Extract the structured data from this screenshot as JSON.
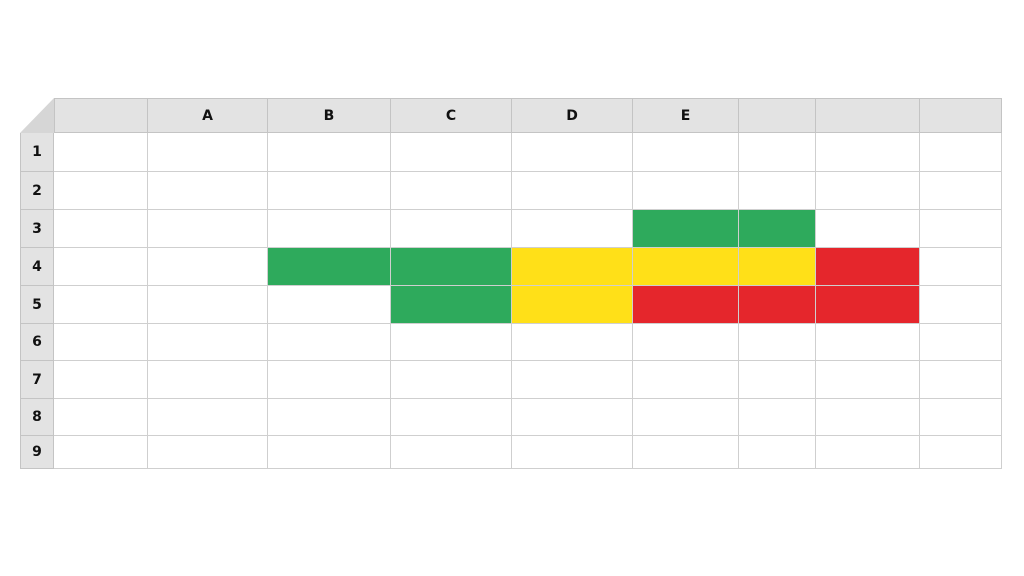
{
  "spreadsheet": {
    "column_headers": [
      "",
      "A",
      "B",
      "C",
      "D",
      "E",
      "",
      "",
      ""
    ],
    "row_headers": [
      "1",
      "2",
      "3",
      "4",
      "5",
      "6",
      "7",
      "8",
      "9"
    ],
    "colors": {
      "green": "#2eaa5c",
      "yellow": "#ffe018",
      "red": "#e5262c",
      "header": "#e3e3e3",
      "grid": "#cfcfcf"
    },
    "filled_cells": [
      {
        "row": 3,
        "col": 6,
        "color": "green"
      },
      {
        "row": 3,
        "col": 7,
        "color": "green"
      },
      {
        "row": 4,
        "col": 3,
        "color": "green"
      },
      {
        "row": 4,
        "col": 4,
        "color": "green"
      },
      {
        "row": 4,
        "col": 5,
        "color": "yellow"
      },
      {
        "row": 4,
        "col": 6,
        "color": "yellow"
      },
      {
        "row": 4,
        "col": 7,
        "color": "yellow"
      },
      {
        "row": 4,
        "col": 8,
        "color": "red"
      },
      {
        "row": 5,
        "col": 4,
        "color": "green"
      },
      {
        "row": 5,
        "col": 5,
        "color": "yellow"
      },
      {
        "row": 5,
        "col": 6,
        "color": "red"
      },
      {
        "row": 5,
        "col": 7,
        "color": "red"
      },
      {
        "row": 5,
        "col": 8,
        "color": "red"
      }
    ]
  }
}
